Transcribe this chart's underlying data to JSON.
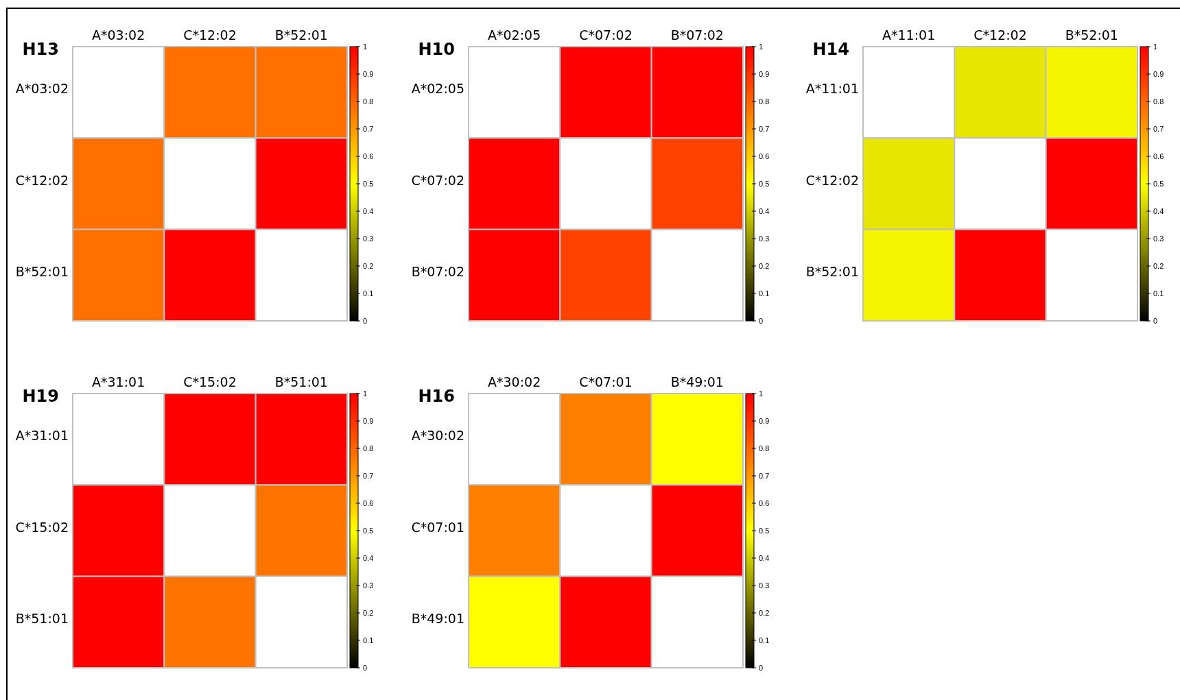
{
  "chart_data": [
    {
      "type": "heatmap",
      "title": "H13",
      "categories": [
        "A*03:02",
        "C*12:02",
        "B*52:01"
      ],
      "y_categories": [
        "A*03:02",
        "C*12:02",
        "B*52:01"
      ],
      "cells": [
        [
          null,
          0.78,
          0.78
        ],
        [
          0.78,
          null,
          1
        ],
        [
          0.78,
          1,
          null
        ]
      ],
      "clim": [
        0,
        1
      ],
      "cticks": [
        0,
        0.1,
        0.2,
        0.3,
        0.4,
        0.5,
        0.6,
        0.7,
        0.8,
        0.9,
        1
      ]
    },
    {
      "type": "heatmap",
      "title": "H10",
      "categories": [
        "A*02:05",
        "C*07:02",
        "B*07:02"
      ],
      "y_categories": [
        "A*02:05",
        "C*07:02",
        "B*07:02"
      ],
      "cells": [
        [
          null,
          1,
          1
        ],
        [
          1,
          null,
          0.87
        ],
        [
          1,
          0.87,
          null
        ]
      ],
      "clim": [
        0,
        1
      ],
      "cticks": [
        0,
        0.1,
        0.2,
        0.3,
        0.4,
        0.5,
        0.6,
        0.7,
        0.8,
        0.9,
        1
      ]
    },
    {
      "type": "heatmap",
      "title": "H14",
      "categories": [
        "A*11:01",
        "C*12:02",
        "B*52:01"
      ],
      "y_categories": [
        "A*11:01",
        "C*12:02",
        "B*52:01"
      ],
      "cells": [
        [
          null,
          0.45,
          0.48
        ],
        [
          0.45,
          null,
          1
        ],
        [
          0.48,
          1,
          null
        ]
      ],
      "clim": [
        0,
        1
      ],
      "cticks": [
        0,
        0.1,
        0.2,
        0.3,
        0.4,
        0.5,
        0.6,
        0.7,
        0.8,
        0.9,
        1
      ]
    },
    {
      "type": "heatmap",
      "title": "H19",
      "categories": [
        "A*31:01",
        "C*15:02",
        "B*51:01"
      ],
      "y_categories": [
        "A*31:01",
        "C*15:02",
        "B*51:01"
      ],
      "cells": [
        [
          null,
          1,
          1
        ],
        [
          1,
          null,
          0.77
        ],
        [
          1,
          0.77,
          null
        ]
      ],
      "clim": [
        0,
        1
      ],
      "cticks": [
        0,
        0.1,
        0.2,
        0.3,
        0.4,
        0.5,
        0.6,
        0.7,
        0.8,
        0.9,
        1
      ]
    },
    {
      "type": "heatmap",
      "title": "H16",
      "categories": [
        "A*30:02",
        "C*07:01",
        "B*49:01"
      ],
      "y_categories": [
        "A*30:02",
        "C*07:01",
        "B*49:01"
      ],
      "cells": [
        [
          null,
          0.75,
          0.5
        ],
        [
          0.75,
          null,
          1
        ],
        [
          0.5,
          1,
          null
        ]
      ],
      "clim": [
        0,
        1
      ],
      "cticks": [
        0,
        0.1,
        0.2,
        0.3,
        0.4,
        0.5,
        0.6,
        0.7,
        0.8,
        0.9,
        1
      ]
    }
  ]
}
